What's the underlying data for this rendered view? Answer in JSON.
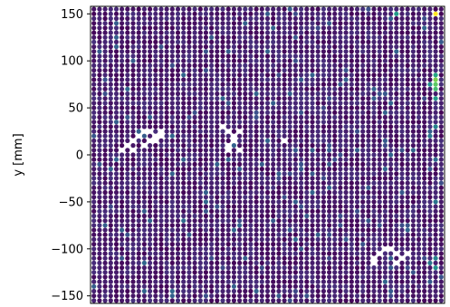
{
  "chart_data": {
    "type": "scatter",
    "ylabel": "y [mm]",
    "xlabel": "",
    "title": "",
    "grid": false,
    "colormap": "viridis",
    "ylim": [
      -158,
      158
    ],
    "xlim": [
      -158,
      158
    ],
    "y_ticks": [
      150,
      100,
      50,
      0,
      -50,
      -100,
      -150
    ],
    "y_tick_labels": [
      "150",
      "100",
      "50",
      "0",
      "−50",
      "−100",
      "−150"
    ],
    "grid_points": {
      "x_start": -155,
      "x_end": 155,
      "y_start": -155,
      "y_end": 155,
      "step": 5,
      "base_value": 0.08
    },
    "missing_points": [
      [
        -115,
        20
      ],
      [
        -110,
        25
      ],
      [
        -105,
        25
      ],
      [
        -120,
        15
      ],
      [
        -125,
        10
      ],
      [
        -130,
        5
      ],
      [
        -120,
        5
      ],
      [
        -110,
        10
      ],
      [
        -105,
        15
      ],
      [
        -100,
        20
      ],
      [
        -95,
        25
      ],
      [
        -95,
        20
      ],
      [
        -100,
        15
      ],
      [
        -35,
        25
      ],
      [
        -30,
        20
      ],
      [
        -25,
        25
      ],
      [
        -30,
        15
      ],
      [
        -35,
        10
      ],
      [
        -35,
        5
      ],
      [
        -25,
        5
      ],
      [
        -40,
        30
      ],
      [
        15,
        15
      ],
      [
        105,
        -100
      ],
      [
        100,
        -105
      ],
      [
        95,
        -110
      ],
      [
        95,
        -115
      ],
      [
        110,
        -100
      ],
      [
        115,
        -105
      ],
      [
        115,
        -115
      ],
      [
        120,
        -110
      ],
      [
        125,
        -105
      ],
      [
        -160,
        125
      ]
    ],
    "highlight_points": [
      {
        "x": 150,
        "y": 150,
        "value": 1.0
      },
      {
        "x": 115,
        "y": 150,
        "value": 0.55
      },
      {
        "x": 150,
        "y": 80,
        "value": 0.8
      },
      {
        "x": 150,
        "y": 75,
        "value": 0.75
      },
      {
        "x": 150,
        "y": 70,
        "value": 0.7
      },
      {
        "x": 150,
        "y": 85,
        "value": 0.6
      },
      {
        "x": 150,
        "y": 60,
        "value": 0.55
      },
      {
        "x": 145,
        "y": 75,
        "value": 0.5
      },
      {
        "x": 150,
        "y": 30,
        "value": 0.45
      },
      {
        "x": 145,
        "y": 20,
        "value": 0.4
      },
      {
        "x": 150,
        "y": -120,
        "value": 0.5
      },
      {
        "x": 150,
        "y": -110,
        "value": 0.45
      },
      {
        "x": 145,
        "y": -115,
        "value": 0.4
      },
      {
        "x": 150,
        "y": -50,
        "value": 0.4
      },
      {
        "x": 150,
        "y": -5,
        "value": 0.35
      },
      {
        "x": -75,
        "y": -70,
        "value": 0.35
      },
      {
        "x": 10,
        "y": -20,
        "value": 0.3
      },
      {
        "x": -5,
        "y": -10,
        "value": 0.3
      }
    ]
  }
}
